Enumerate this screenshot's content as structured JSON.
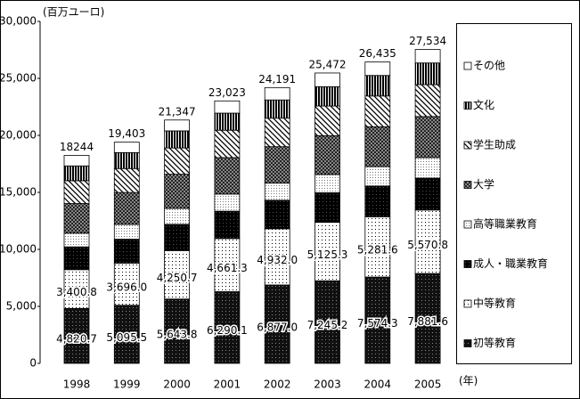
{
  "chart_data": {
    "type": "stacked-bar",
    "unit_label": "(百万ユーロ)",
    "x_unit_label": "(年)",
    "categories": [
      "1998",
      "1999",
      "2000",
      "2001",
      "2002",
      "2003",
      "2004",
      "2005"
    ],
    "ylim": [
      0,
      30000
    ],
    "yticks": [
      {
        "value": 0,
        "label": "0"
      },
      {
        "value": 5000,
        "label": "5,000"
      },
      {
        "value": 10000,
        "label": "10,000"
      },
      {
        "value": 15000,
        "label": "15,000"
      },
      {
        "value": 20000,
        "label": "20,000"
      },
      {
        "value": 25000,
        "label": "25,000"
      },
      {
        "value": 30000,
        "label": "30,000"
      }
    ],
    "totals": [
      18244,
      19403,
      21347,
      23023,
      24191,
      25472,
      26435,
      27534
    ],
    "total_labels": [
      "18244",
      "19,403",
      "21,347",
      "23,023",
      "24,191",
      "25,472",
      "26,435",
      "27,534"
    ],
    "series": [
      {
        "name": "初等教育",
        "pattern": "black-dots",
        "values": [
          4820.7,
          5095.5,
          5643.8,
          6290.1,
          6877.0,
          7245.2,
          7574.3,
          7881.6
        ],
        "value_labels": [
          "4,820.7",
          "5,095.5",
          "5,643.8",
          "6,290.1",
          "6,877.0",
          "7,245.2",
          "7,574.3",
          "7,881.6"
        ]
      },
      {
        "name": "中等教育",
        "pattern": "light-dots",
        "values": [
          3400.8,
          3696.0,
          4250.7,
          4661.3,
          4932.0,
          5125.3,
          5281.6,
          5570.8
        ],
        "value_labels": [
          "3,400.8",
          "3,696.0",
          "4,250.7",
          "4,661.3",
          "4,932.0",
          "5,125.3",
          "5,281.6",
          "5,570.8"
        ]
      },
      {
        "name": "成人・職業教育",
        "pattern": "black",
        "values": [
          2000,
          2100,
          2300,
          2400,
          2500,
          2600,
          2700,
          2800
        ]
      },
      {
        "name": "高等職業教育",
        "pattern": "fine-dots",
        "values": [
          1200,
          1300,
          1400,
          1500,
          1500,
          1600,
          1700,
          1800
        ]
      },
      {
        "name": "大学",
        "pattern": "check",
        "values": [
          2600,
          2800,
          3000,
          3200,
          3200,
          3400,
          3500,
          3600
        ]
      },
      {
        "name": "学生助成",
        "pattern": "diag",
        "values": [
          2000,
          2100,
          2300,
          2400,
          2500,
          2600,
          2700,
          2800
        ]
      },
      {
        "name": "文化",
        "pattern": "vstripes",
        "values": [
          1300,
          1400,
          1500,
          1500,
          1600,
          1700,
          1800,
          1900
        ]
      },
      {
        "name": "その他",
        "pattern": "white",
        "values": [
          922.5,
          911.5,
          952.5,
          1071.6,
          1082,
          1201.5,
          1179.1,
          1181.6
        ]
      }
    ]
  }
}
